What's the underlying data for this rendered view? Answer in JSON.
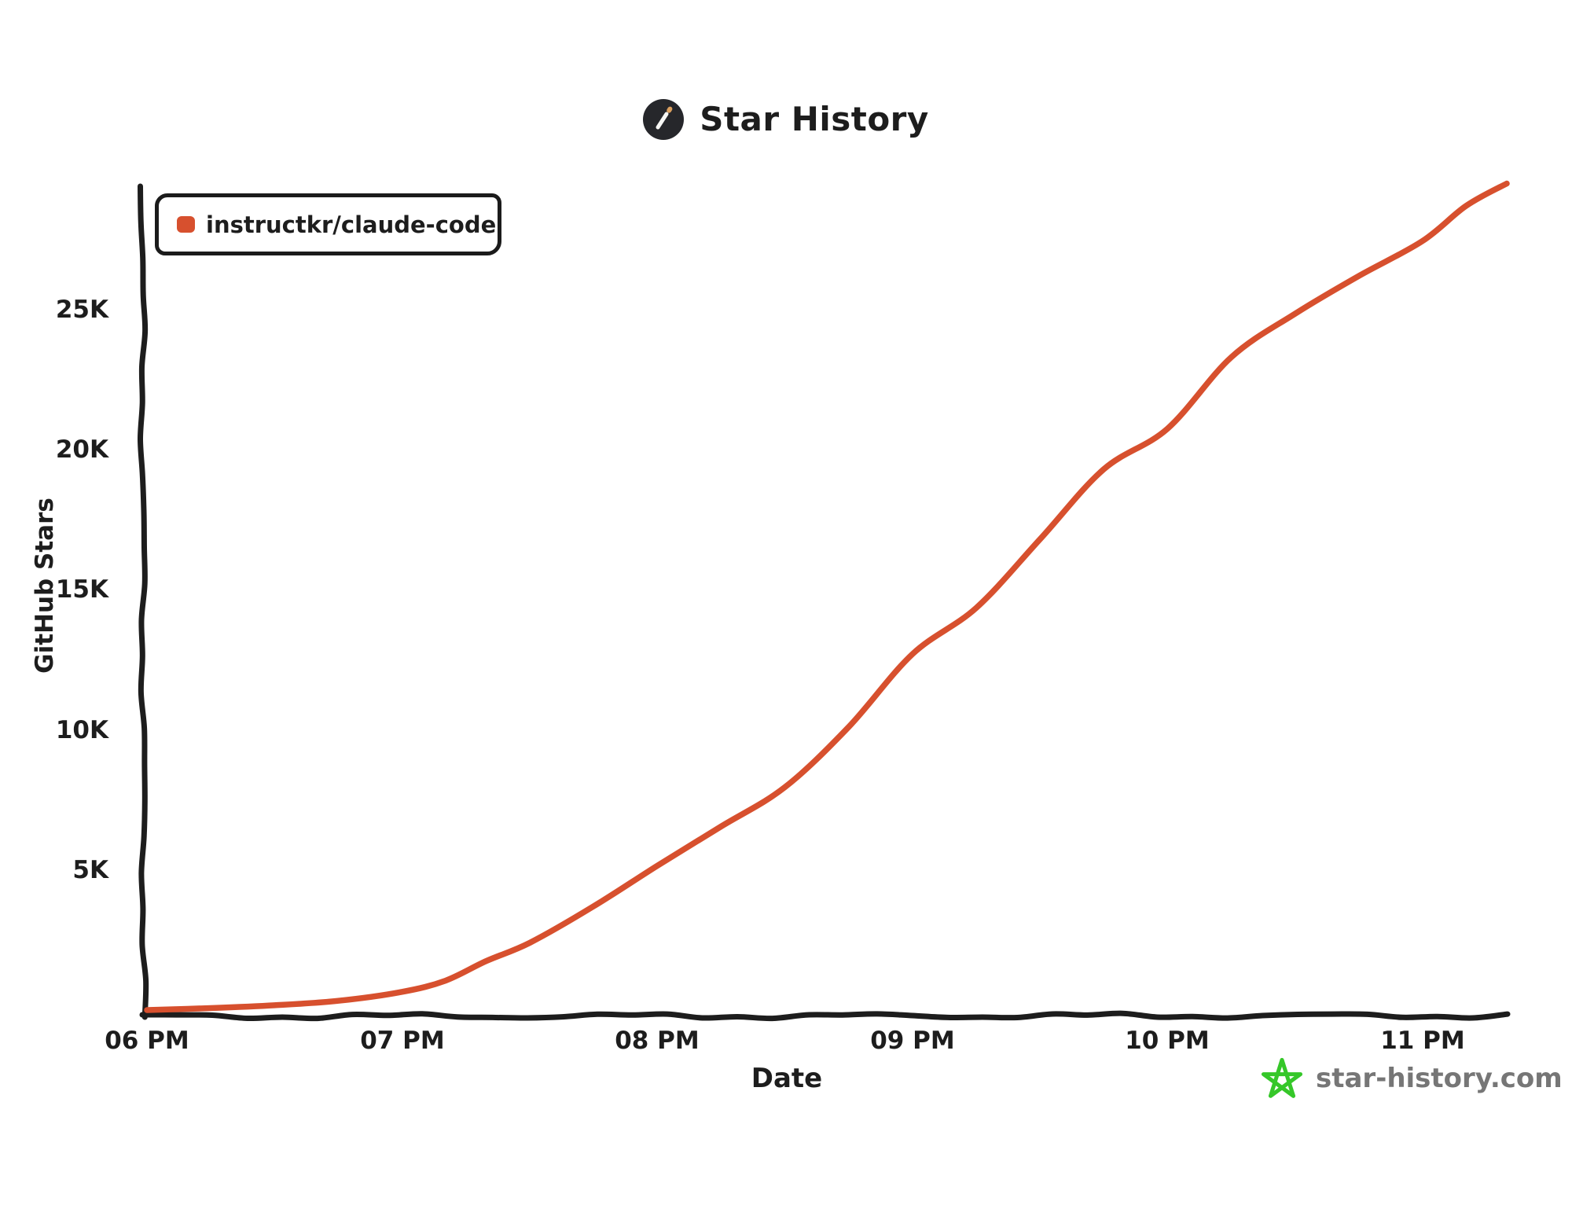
{
  "header": {
    "title": "Star History",
    "logo_colors": {
      "circle": "#26272b",
      "wand": "#f7f7f5",
      "tip": "#dba05f"
    }
  },
  "watermark": {
    "text": "star-history.com",
    "star_color": "#35c729",
    "text_color": "#767676"
  },
  "colors": {
    "axis": "#1d1d1d",
    "background": "#ffffff"
  },
  "chart_data": {
    "type": "line",
    "title": "Star History",
    "xlabel": "Date",
    "ylabel": "GitHub Stars",
    "grid": false,
    "legend": {
      "position": "top-left",
      "entries": [
        "instructkr/claude-code"
      ]
    },
    "x_axis": {
      "unit": "hour of day (PM)",
      "range_t": [
        18,
        23.33
      ],
      "ticks": [
        {
          "label": "06 PM",
          "t": 18
        },
        {
          "label": "07 PM",
          "t": 19
        },
        {
          "label": "08 PM",
          "t": 20
        },
        {
          "label": "09 PM",
          "t": 21
        },
        {
          "label": "10 PM",
          "t": 22
        },
        {
          "label": "11 PM",
          "t": 23
        }
      ]
    },
    "y_axis": {
      "range": [
        0,
        31000
      ],
      "ticks": [
        {
          "label": "5K",
          "value": 5000
        },
        {
          "label": "10K",
          "value": 10000
        },
        {
          "label": "15K",
          "value": 15000
        },
        {
          "label": "20K",
          "value": 20000
        },
        {
          "label": "25K",
          "value": 25000
        }
      ]
    },
    "series": [
      {
        "name": "instructkr/claude-code",
        "color": "#d7502e",
        "points": [
          {
            "t": 18.0,
            "stars": 0
          },
          {
            "t": 18.25,
            "stars": 70
          },
          {
            "t": 18.5,
            "stars": 170
          },
          {
            "t": 18.75,
            "stars": 330
          },
          {
            "t": 19.0,
            "stars": 650
          },
          {
            "t": 19.17,
            "stars": 1050
          },
          {
            "t": 19.33,
            "stars": 1750
          },
          {
            "t": 19.5,
            "stars": 2400
          },
          {
            "t": 19.75,
            "stars": 3700
          },
          {
            "t": 20.0,
            "stars": 5150
          },
          {
            "t": 20.25,
            "stars": 6550
          },
          {
            "t": 20.5,
            "stars": 7950
          },
          {
            "t": 20.75,
            "stars": 10100
          },
          {
            "t": 21.0,
            "stars": 12700
          },
          {
            "t": 21.25,
            "stars": 14350
          },
          {
            "t": 21.5,
            "stars": 16800
          },
          {
            "t": 21.75,
            "stars": 19300
          },
          {
            "t": 22.0,
            "stars": 20750
          },
          {
            "t": 22.25,
            "stars": 23300
          },
          {
            "t": 22.5,
            "stars": 24850
          },
          {
            "t": 22.75,
            "stars": 26200
          },
          {
            "t": 23.0,
            "stars": 27450
          },
          {
            "t": 23.17,
            "stars": 28700
          },
          {
            "t": 23.33,
            "stars": 29500
          }
        ]
      }
    ]
  }
}
